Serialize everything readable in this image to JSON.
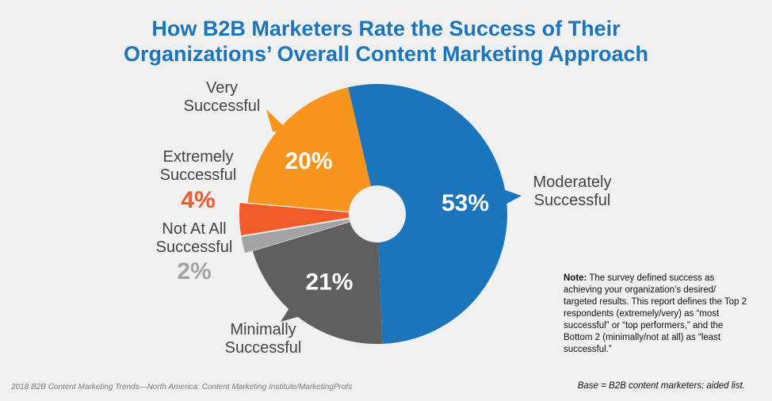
{
  "header": {
    "title_line1": "How B2B Marketers Rate the Success of Their",
    "title_line2": "Organizations’ Overall Content Marketing Approach"
  },
  "chart_data": {
    "type": "pie",
    "style": "donut",
    "title": "How B2B Marketers Rate the Success of Their Organizations’ Overall Content Marketing Approach",
    "slices": [
      {
        "label_lines": [
          "Moderately",
          "Successful"
        ],
        "value": 53,
        "display": "53%",
        "color": "#1b75bc"
      },
      {
        "label_lines": [
          "Minimally",
          "Successful"
        ],
        "value": 21,
        "display": "21%",
        "color": "#5f5f61"
      },
      {
        "label_lines": [
          "Not At All",
          "Successful"
        ],
        "value": 2,
        "display": "2%",
        "color": "#a3a3a6"
      },
      {
        "label_lines": [
          "Extremely",
          "Successful"
        ],
        "value": 4,
        "display": "4%",
        "color": "#f15a29"
      },
      {
        "label_lines": [
          "Very",
          "Successful"
        ],
        "value": 20,
        "display": "20%",
        "color": "#f7941d"
      }
    ]
  },
  "note": {
    "label": "Note:",
    "text": "The survey defined success as achieving your organization’s desired/ targeted results. This report defines the Top 2 respondents (extremely/very) as “most successful” or “top performers,” and the Bottom 2 (minimally/not at all) as “least successful.”"
  },
  "footer": {
    "source": "2018 B2B Content Marketing Trends—North America: Content Marketing Institute/MarketingProfs",
    "base": "Base = B2B content marketers; aided list."
  }
}
